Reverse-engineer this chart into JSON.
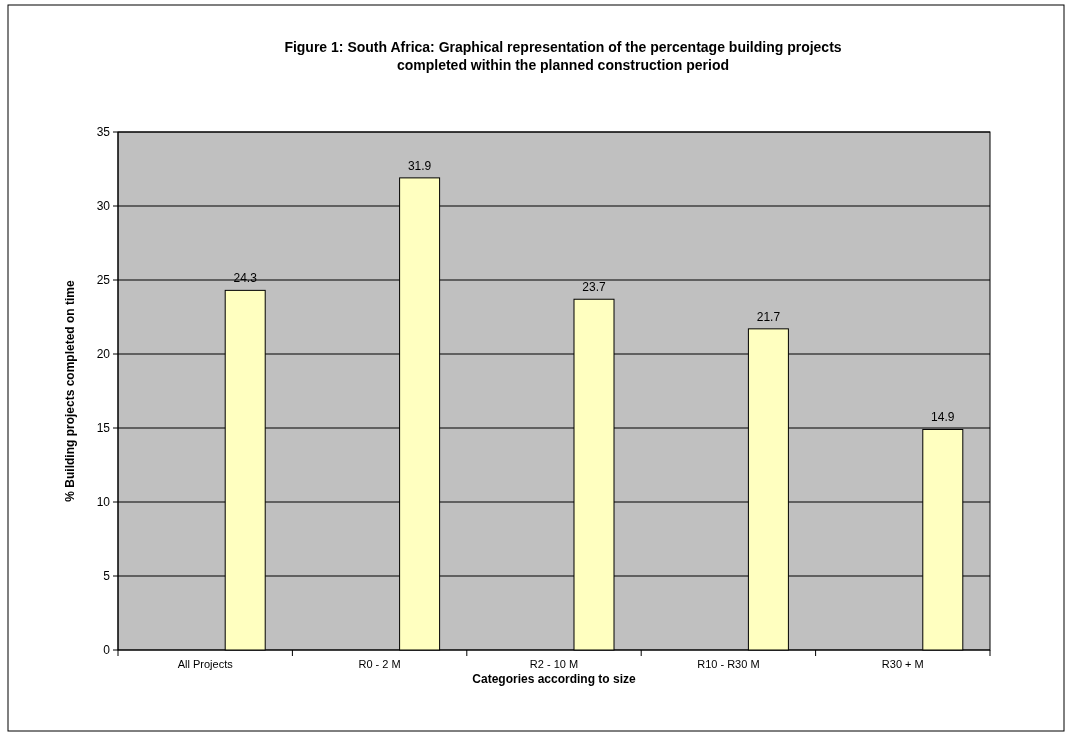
{
  "chart_data": {
    "type": "bar",
    "title": "Figure 1: South Africa: Graphical representation of the percentage building projects\ncompleted within the planned construction period",
    "xlabel": "Categories according to size",
    "ylabel": "% Building projects completed on time",
    "categories": [
      "All Projects",
      "R0 - 2 M",
      "R2 - 10 M",
      "R10 - R30 M",
      "R30 + M"
    ],
    "values": [
      24.3,
      31.9,
      23.7,
      21.7,
      14.9
    ],
    "color": "#ffffc0",
    "ylim": [
      0,
      35
    ],
    "yticks": [
      0,
      5,
      10,
      15,
      20,
      25,
      30,
      35
    ],
    "grid": "y",
    "data_labels": true
  }
}
